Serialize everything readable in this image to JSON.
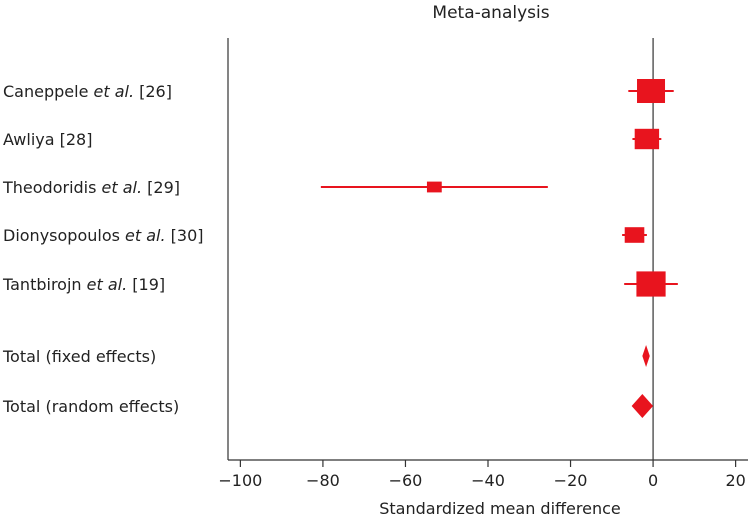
{
  "chart_data": {
    "type": "forest",
    "title": "Meta-analysis",
    "xlabel": "Standardized mean difference",
    "xlim": [
      -103,
      23
    ],
    "xticks": [
      -100,
      -80,
      -60,
      -40,
      -20,
      0,
      20
    ],
    "xtick_labels": [
      "−100",
      "−80",
      "−60",
      "−40",
      "−20",
      "0",
      "20"
    ],
    "reference_line": 0,
    "color": "#e8141e",
    "studies": [
      {
        "label": "Caneppele",
        "suffix": " [26]",
        "italic": "et al.",
        "estimate": -0.5,
        "ci_low": -6.0,
        "ci_high": 5.0,
        "weight": 1.0
      },
      {
        "label": "Awliya [28]",
        "suffix": "",
        "italic": "",
        "estimate": -1.5,
        "ci_low": -5.0,
        "ci_high": 2.0,
        "weight": 0.85
      },
      {
        "label": "Theodoridis",
        "suffix": " [29]",
        "italic": "et al.",
        "estimate": -53.0,
        "ci_low": -80.5,
        "ci_high": -25.5,
        "weight": 0.45
      },
      {
        "label": "Dionysopoulos",
        "suffix": " [30]",
        "italic": "et al.",
        "estimate": -4.5,
        "ci_low": -7.5,
        "ci_high": -1.5,
        "weight": 0.65
      },
      {
        "label": "Tantbirojn",
        "suffix": " [19]",
        "italic": "et al.",
        "estimate": -0.5,
        "ci_low": -7.0,
        "ci_high": 6.0,
        "weight": 1.05
      }
    ],
    "totals": [
      {
        "label": "Total (fixed effects)",
        "estimate": -1.7,
        "ci_low": -2.6,
        "ci_high": -0.8
      },
      {
        "label": "Total (random effects)",
        "estimate": -2.6,
        "ci_low": -5.2,
        "ci_high": 0.0
      }
    ]
  }
}
